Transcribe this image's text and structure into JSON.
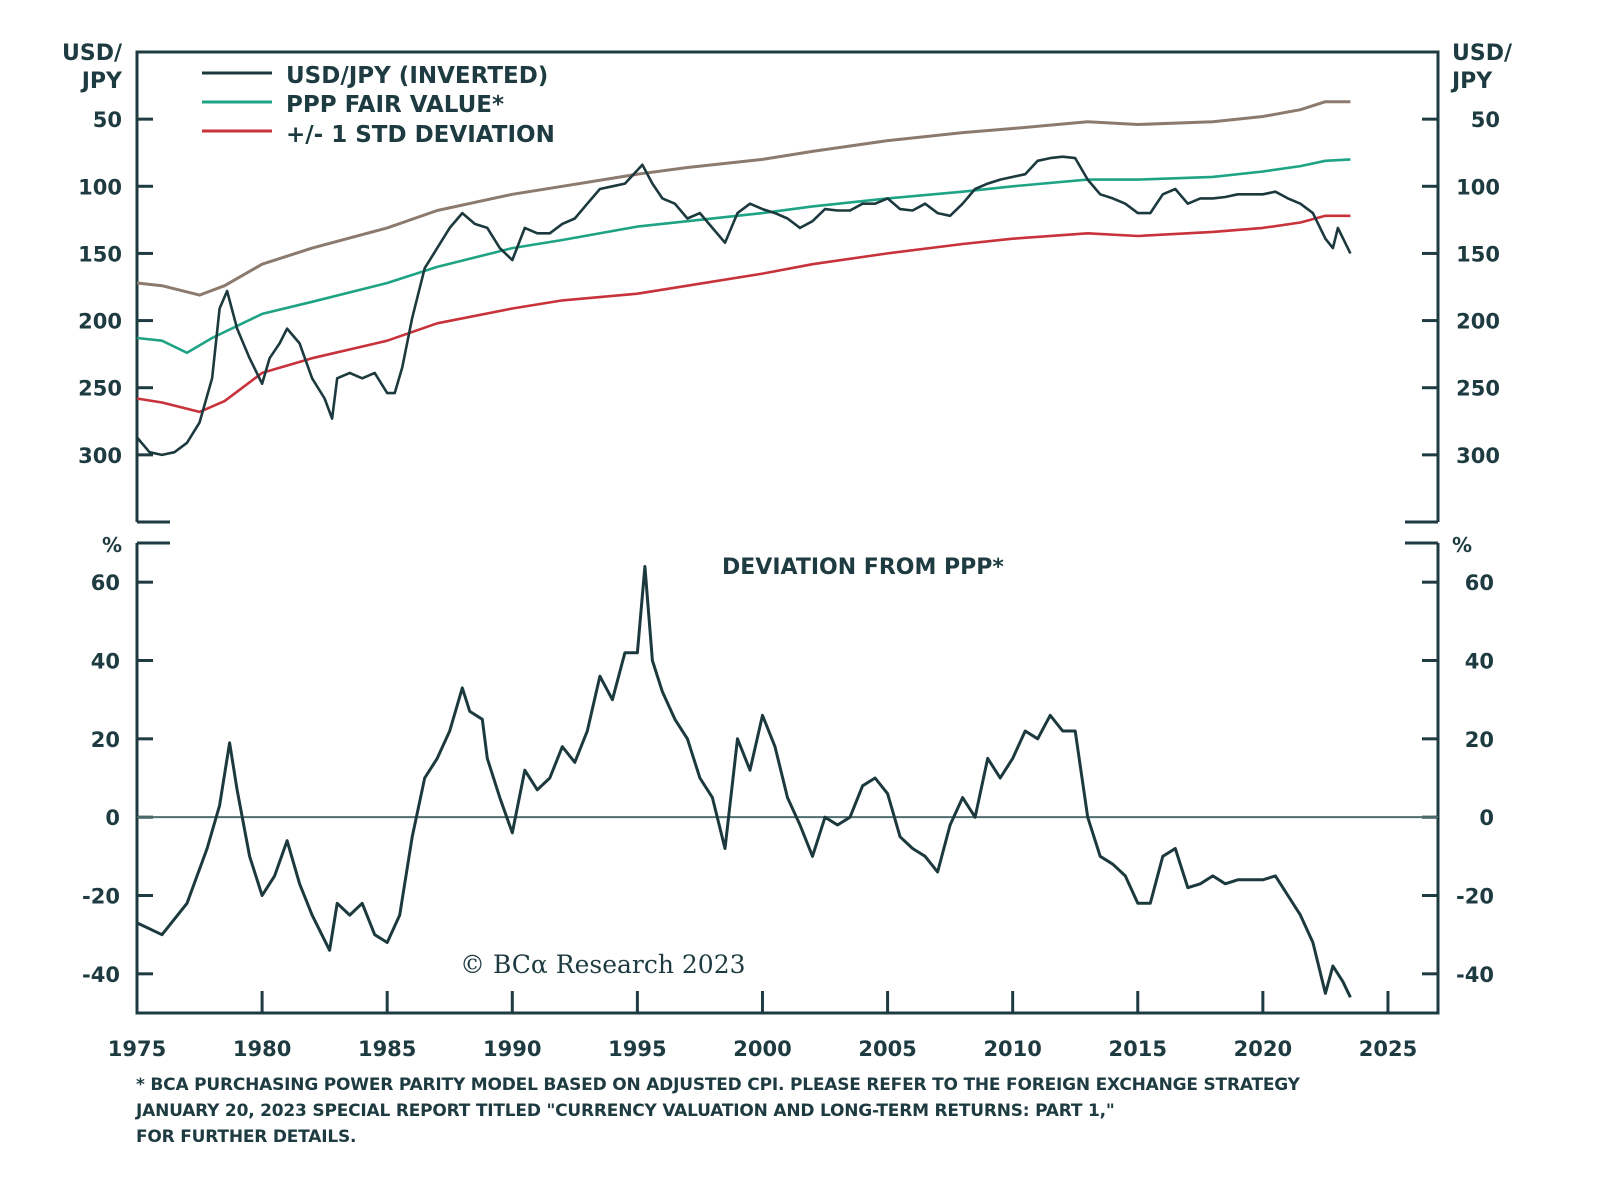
{
  "chart_data": [
    {
      "type": "line",
      "panel": "top",
      "title": "",
      "ylabel_left": [
        "USD/",
        "JPY"
      ],
      "ylabel_right": [
        "USD/",
        "JPY"
      ],
      "y_inverted": true,
      "ylim": [
        0,
        350
      ],
      "yticks": [
        50,
        100,
        150,
        200,
        250,
        300
      ],
      "xlim": [
        1975,
        2027
      ],
      "grid": false,
      "legend_position": "top-left",
      "series": [
        {
          "name": "USD/JPY (INVERTED)",
          "color": "#1c3a3e",
          "x": [
            1975,
            1975.5,
            1976,
            1976.5,
            1977,
            1977.5,
            1978,
            1978.3,
            1978.6,
            1979,
            1979.5,
            1980,
            1980.3,
            1980.7,
            1981,
            1981.5,
            1982,
            1982.5,
            1982.8,
            1983,
            1983.5,
            1984,
            1984.5,
            1985,
            1985.3,
            1985.6,
            1986,
            1986.5,
            1987,
            1987.5,
            1988,
            1988.5,
            1989,
            1989.5,
            1990,
            1990.5,
            1991,
            1991.5,
            1992,
            1992.5,
            1993,
            1993.5,
            1994,
            1994.5,
            1995.2,
            1995.6,
            1996,
            1996.5,
            1997,
            1997.5,
            1998,
            1998.5,
            1999,
            1999.5,
            2000,
            2000.5,
            2001,
            2001.5,
            2002,
            2002.5,
            2003,
            2003.5,
            2004,
            2004.5,
            2005,
            2005.5,
            2006,
            2006.5,
            2007,
            2007.5,
            2008,
            2008.5,
            2009,
            2009.5,
            2010,
            2010.5,
            2011,
            2011.5,
            2012,
            2012.5,
            2013,
            2013.5,
            2014,
            2014.5,
            2015,
            2015.5,
            2016,
            2016.5,
            2017,
            2017.5,
            2018,
            2018.5,
            2019,
            2019.5,
            2020,
            2020.5,
            2021,
            2021.5,
            2022,
            2022.5,
            2022.8,
            2023,
            2023.5
          ],
          "values": [
            287,
            298,
            300,
            298,
            291,
            276,
            243,
            191,
            178,
            206,
            228,
            247,
            228,
            217,
            206,
            217,
            243,
            258,
            273,
            243,
            239,
            243,
            239,
            254,
            254,
            235,
            198,
            161,
            146,
            131,
            120,
            128,
            131,
            146,
            155,
            131,
            135,
            135,
            128,
            124,
            113,
            102,
            100,
            98,
            84,
            98,
            109,
            113,
            124,
            120,
            131,
            142,
            120,
            113,
            117,
            120,
            124,
            131,
            126,
            117,
            118,
            118,
            113,
            113,
            109,
            117,
            118,
            113,
            120,
            122,
            113,
            102,
            98,
            95,
            93,
            91,
            81,
            79,
            78,
            79,
            95,
            106,
            109,
            113,
            120,
            120,
            106,
            102,
            113,
            109,
            109,
            108,
            106,
            106,
            106,
            104,
            109,
            113,
            120,
            139,
            146,
            131,
            150
          ]
        },
        {
          "name": "PPP FAIR VALUE*",
          "color": "#1fa385",
          "x": [
            1975,
            1976,
            1977,
            1978,
            1979,
            1980,
            1982,
            1985,
            1987,
            1990,
            1992,
            1995,
            1997,
            2000,
            2002,
            2005,
            2008,
            2010,
            2013,
            2015,
            2018,
            2020,
            2021.5,
            2022.5,
            2023.5
          ],
          "values": [
            213,
            215,
            224,
            213,
            204,
            195,
            186,
            172,
            160,
            146,
            140,
            130,
            126,
            120,
            115,
            109,
            104,
            100,
            95,
            95,
            93,
            89,
            85,
            81,
            80
          ]
        },
        {
          "name": "+/- 1 STD DEVIATION (upper)",
          "color": "#8c7a6e",
          "x": [
            1975,
            1976,
            1977.5,
            1978.5,
            1980,
            1982,
            1985,
            1987,
            1990,
            1992,
            1995,
            1997,
            2000,
            2002,
            2005,
            2008,
            2010,
            2013,
            2015,
            2018,
            2020,
            2021.5,
            2022.5,
            2023.5
          ],
          "values": [
            172,
            174,
            181,
            174,
            158,
            146,
            131,
            118,
            106,
            100,
            91,
            86,
            80,
            74,
            66,
            60,
            57,
            52,
            54,
            52,
            48,
            43,
            37,
            37
          ]
        },
        {
          "name": "+/- 1 STD DEVIATION (lower)",
          "color": "#c8323a",
          "x": [
            1975,
            1976,
            1977.5,
            1978.5,
            1980,
            1982,
            1985,
            1987,
            1990,
            1992,
            1995,
            1997,
            2000,
            2002,
            2005,
            2008,
            2010,
            2013,
            2015,
            2018,
            2020,
            2021.5,
            2022.5,
            2023.5
          ],
          "values": [
            258,
            261,
            268,
            260,
            239,
            228,
            215,
            202,
            191,
            185,
            180,
            174,
            165,
            158,
            150,
            143,
            139,
            135,
            137,
            134,
            131,
            127,
            122,
            122
          ]
        }
      ]
    },
    {
      "type": "line",
      "panel": "bottom",
      "title": "DEVIATION FROM PPP*",
      "ylabel_left": "%",
      "ylabel_right": "%",
      "ylim": [
        -50,
        70
      ],
      "yticks": [
        60,
        40,
        20,
        0,
        -20,
        -40
      ],
      "xlim": [
        1975,
        2027
      ],
      "xticks": [
        1975,
        1980,
        1985,
        1990,
        1995,
        2000,
        2005,
        2010,
        2015,
        2020,
        2025
      ],
      "zero_line": true,
      "grid": false,
      "series": [
        {
          "name": "Deviation from PPP",
          "color": "#1c3a3e",
          "x": [
            1975,
            1976,
            1977,
            1977.8,
            1978.3,
            1978.7,
            1979,
            1979.5,
            1980,
            1980.5,
            1981,
            1981.5,
            1982,
            1982.7,
            1983,
            1983.5,
            1984,
            1984.5,
            1985,
            1985.5,
            1986,
            1986.5,
            1987,
            1987.5,
            1988,
            1988.3,
            1988.8,
            1989,
            1989.5,
            1990,
            1990.5,
            1991,
            1991.5,
            1992,
            1992.5,
            1993,
            1993.5,
            1994,
            1994.5,
            1995,
            1995.3,
            1995.6,
            1996,
            1996.5,
            1997,
            1997.5,
            1998,
            1998.5,
            1999,
            1999.5,
            2000,
            2000.5,
            2001,
            2001.5,
            2002,
            2002.5,
            2003,
            2003.5,
            2004,
            2004.5,
            2005,
            2005.5,
            2006,
            2006.5,
            2007,
            2007.5,
            2008,
            2008.5,
            2009,
            2009.5,
            2010,
            2010.5,
            2011,
            2011.5,
            2012,
            2012.5,
            2013,
            2013.5,
            2014,
            2014.5,
            2015,
            2015.5,
            2016,
            2016.5,
            2017,
            2017.5,
            2018,
            2018.5,
            2019,
            2019.5,
            2020,
            2020.5,
            2021,
            2021.5,
            2022,
            2022.5,
            2022.8,
            2023.2,
            2023.5
          ],
          "values": [
            -27,
            -30,
            -22,
            -8,
            3,
            19,
            7,
            -10,
            -20,
            -15,
            -6,
            -17,
            -25,
            -34,
            -22,
            -25,
            -22,
            -30,
            -32,
            -25,
            -5,
            10,
            15,
            22,
            33,
            27,
            25,
            15,
            5,
            -4,
            12,
            7,
            10,
            18,
            14,
            22,
            36,
            30,
            42,
            42,
            64,
            40,
            32,
            25,
            20,
            10,
            5,
            -8,
            20,
            12,
            26,
            18,
            5,
            -2,
            -10,
            0,
            -2,
            0,
            8,
            10,
            6,
            -5,
            -8,
            -10,
            -14,
            -2,
            5,
            0,
            15,
            10,
            15,
            22,
            20,
            26,
            22,
            22,
            0,
            -10,
            -12,
            -15,
            -22,
            -22,
            -10,
            -8,
            -18,
            -17,
            -15,
            -17,
            -16,
            -16,
            -16,
            -15,
            -20,
            -25,
            -32,
            -45,
            -38,
            -42,
            -46
          ]
        }
      ]
    }
  ],
  "legend": {
    "items": [
      {
        "label": "USD/JPY (INVERTED)",
        "color": "#1c3a3e"
      },
      {
        "label": "PPP FAIR VALUE*",
        "color": "#1fa385"
      },
      {
        "label": "+/- 1 STD DEVIATION",
        "color": "#c8323a"
      }
    ]
  },
  "top_axis": {
    "left_label_line1": "USD/",
    "left_label_line2": "JPY",
    "right_label_line1": "USD/",
    "right_label_line2": "JPY",
    "tick_labels": [
      "50",
      "100",
      "150",
      "200",
      "250",
      "300"
    ]
  },
  "bottom_axis": {
    "unit_left": "%",
    "unit_right": "%",
    "tick_labels": [
      "60",
      "40",
      "20",
      "0",
      "-20",
      "-40"
    ],
    "title": "DEVIATION FROM PPP*"
  },
  "x_axis": {
    "tick_labels": [
      "1975",
      "1980",
      "1985",
      "1990",
      "1995",
      "2000",
      "2005",
      "2010",
      "2015",
      "2020",
      "2025"
    ]
  },
  "copyright": "© BCα Research 2023",
  "footnote": {
    "line1": "* BCA PURCHASING POWER PARITY MODEL BASED ON ADJUSTED CPI. PLEASE REFER TO THE FOREIGN EXCHANGE STRATEGY",
    "line2": " JANUARY 20, 2023 SPECIAL REPORT TITLED \"CURRENCY VALUATION AND LONG-TERM RETURNS: PART 1,\"",
    "line3": "FOR FURTHER DETAILS."
  },
  "colors": {
    "text": "#1d3b40",
    "axis": "#1d3b40",
    "usdjpy": "#1c3a3e",
    "ppp": "#1fa385",
    "std_upper": "#8c7a6e",
    "std_lower": "#c8323a",
    "zero_line": "#4f6e6e"
  }
}
